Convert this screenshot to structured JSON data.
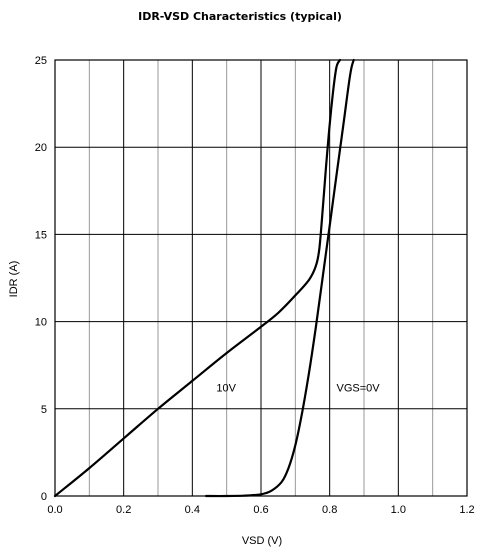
{
  "chart_data": {
    "type": "line",
    "title": "IDR-VSD Characteristics (typical)",
    "xlabel": "VSD (V)",
    "ylabel": "IDR (A)",
    "xlim": [
      0,
      1.2
    ],
    "ylim": [
      0,
      25
    ],
    "x_ticks": [
      "0.0",
      "0.2",
      "0.4",
      "0.6",
      "0.8",
      "1.0",
      "1.2"
    ],
    "y_ticks": [
      "0",
      "5",
      "10",
      "15",
      "20",
      "25"
    ],
    "x_tick_values": [
      0,
      0.2,
      0.4,
      0.6,
      0.8,
      1.0,
      1.2
    ],
    "y_tick_values": [
      0,
      5,
      10,
      15,
      20,
      25
    ],
    "grid": true,
    "series": [
      {
        "name": "10V",
        "x": [
          0.0,
          0.1,
          0.2,
          0.3,
          0.4,
          0.5,
          0.6,
          0.65,
          0.7,
          0.74,
          0.76,
          0.77,
          0.78,
          0.79,
          0.8,
          0.81,
          0.82,
          0.83
        ],
        "y": [
          0.0,
          1.6,
          3.3,
          5.0,
          6.6,
          8.2,
          9.7,
          10.5,
          11.5,
          12.4,
          13.2,
          14.2,
          16.5,
          19.0,
          21.3,
          23.2,
          24.6,
          25.0
        ]
      },
      {
        "name": "VGS=0V",
        "x": [
          0.44,
          0.5,
          0.55,
          0.6,
          0.63,
          0.66,
          0.68,
          0.7,
          0.72,
          0.74,
          0.76,
          0.78,
          0.8,
          0.82,
          0.84,
          0.86,
          0.87
        ],
        "y": [
          0.0,
          0.0,
          0.02,
          0.1,
          0.3,
          0.8,
          1.6,
          2.9,
          4.8,
          7.1,
          9.7,
          12.6,
          15.5,
          18.4,
          21.3,
          24.2,
          25.0
        ]
      }
    ],
    "annotations": [
      {
        "text": "10V",
        "x": 0.47,
        "y": 6.0
      },
      {
        "text": "VGS=0V",
        "x": 0.82,
        "y": 6.0
      }
    ]
  }
}
